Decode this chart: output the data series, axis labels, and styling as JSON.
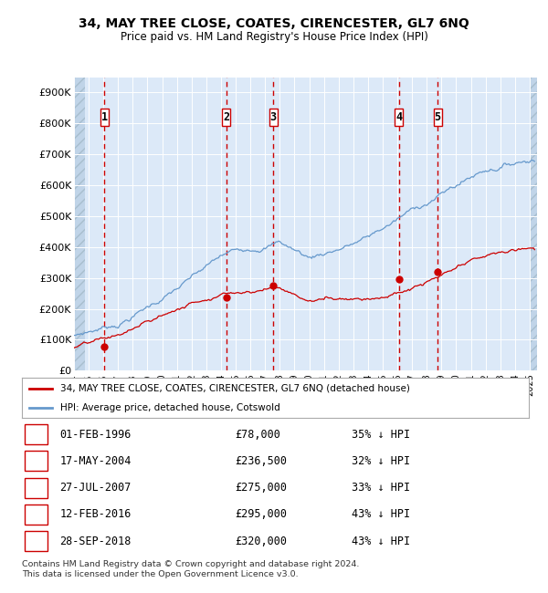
{
  "title1": "34, MAY TREE CLOSE, COATES, CIRENCESTER, GL7 6NQ",
  "title2": "Price paid vs. HM Land Registry's House Price Index (HPI)",
  "ylim": [
    0,
    950000
  ],
  "yticks": [
    0,
    100000,
    200000,
    300000,
    400000,
    500000,
    600000,
    700000,
    800000,
    900000
  ],
  "ytick_labels": [
    "£0",
    "£100K",
    "£200K",
    "£300K",
    "£400K",
    "£500K",
    "£600K",
    "£700K",
    "£800K",
    "£900K"
  ],
  "xlim_start": 1994.0,
  "xlim_end": 2025.5,
  "plot_bg": "#dce9f8",
  "grid_color": "#ffffff",
  "red_line_color": "#cc0000",
  "blue_line_color": "#6699cc",
  "dashed_color": "#cc0000",
  "sale_points": [
    {
      "date": 1996.08,
      "price": 78000,
      "label": "1"
    },
    {
      "date": 2004.37,
      "price": 236500,
      "label": "2"
    },
    {
      "date": 2007.56,
      "price": 275000,
      "label": "3"
    },
    {
      "date": 2016.11,
      "price": 295000,
      "label": "4"
    },
    {
      "date": 2018.74,
      "price": 320000,
      "label": "5"
    }
  ],
  "table_rows": [
    {
      "num": "1",
      "date": "01-FEB-1996",
      "price": "£78,000",
      "pct": "35% ↓ HPI"
    },
    {
      "num": "2",
      "date": "17-MAY-2004",
      "price": "£236,500",
      "pct": "32% ↓ HPI"
    },
    {
      "num": "3",
      "date": "27-JUL-2007",
      "price": "£275,000",
      "pct": "33% ↓ HPI"
    },
    {
      "num": "4",
      "date": "12-FEB-2016",
      "price": "£295,000",
      "pct": "43% ↓ HPI"
    },
    {
      "num": "5",
      "date": "28-SEP-2018",
      "price": "£320,000",
      "pct": "43% ↓ HPI"
    }
  ],
  "legend_entries": [
    "34, MAY TREE CLOSE, COATES, CIRENCESTER, GL7 6NQ (detached house)",
    "HPI: Average price, detached house, Cotswold"
  ],
  "footer": "Contains HM Land Registry data © Crown copyright and database right 2024.\nThis data is licensed under the Open Government Licence v3.0."
}
